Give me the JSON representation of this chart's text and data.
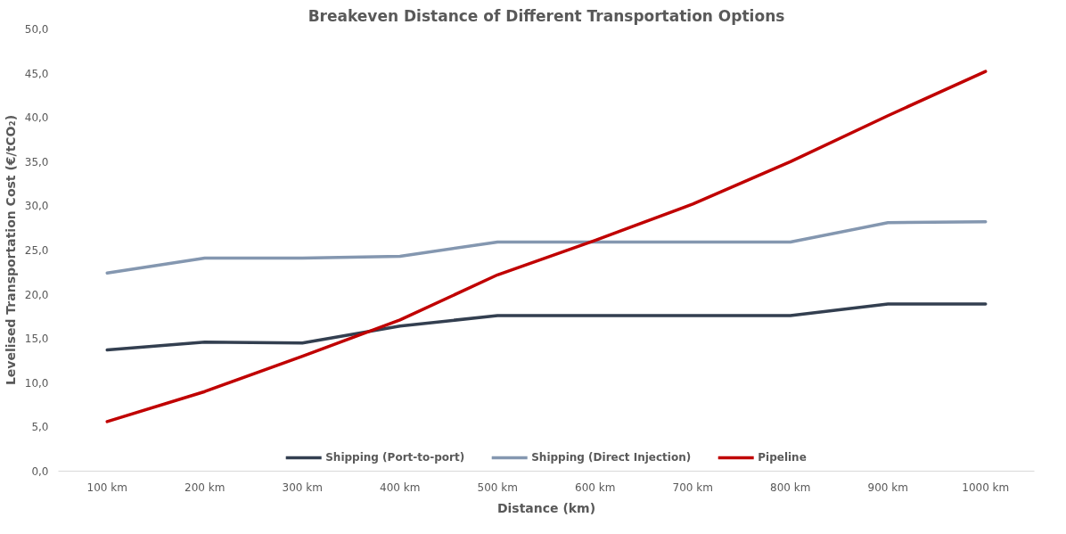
{
  "chart_data": {
    "type": "line",
    "title": "Breakeven Distance of Different Transportation Options",
    "xlabel": "Distance (km)",
    "ylabel": "Levelised Transportation Cost (€/tCO₂)",
    "categories": [
      "100 km",
      "200 km",
      "300 km",
      "400 km",
      "500 km",
      "600 km",
      "700 km",
      "800 km",
      "900 km",
      "1000 km"
    ],
    "series": [
      {
        "name": "Shipping (Port-to-port)",
        "color": "#333f50",
        "values": [
          13.7,
          14.6,
          14.5,
          16.4,
          17.6,
          17.6,
          17.6,
          17.6,
          18.9,
          18.9
        ]
      },
      {
        "name": "Shipping (Direct Injection)",
        "color": "#8497b0",
        "values": [
          22.4,
          24.1,
          24.1,
          24.3,
          25.9,
          25.9,
          25.9,
          25.9,
          28.1,
          28.2
        ]
      },
      {
        "name": "Pipeline",
        "color": "#c00000",
        "values": [
          5.6,
          9.0,
          13.0,
          17.1,
          22.2,
          26.1,
          30.2,
          35.0,
          40.2,
          45.2
        ]
      }
    ],
    "ylim": [
      0,
      50
    ],
    "yticks": [
      {
        "value": 0,
        "label": "0,0"
      },
      {
        "value": 5,
        "label": "5,0"
      },
      {
        "value": 10,
        "label": "10,0"
      },
      {
        "value": 15,
        "label": "15,0"
      },
      {
        "value": 20,
        "label": "20,0"
      },
      {
        "value": 25,
        "label": "25,0"
      },
      {
        "value": 30,
        "label": "30,0"
      },
      {
        "value": 35,
        "label": "35,0"
      },
      {
        "value": 40,
        "label": "40,0"
      },
      {
        "value": 45,
        "label": "45,0"
      },
      {
        "value": 50,
        "label": "50,0"
      }
    ],
    "grid": false,
    "legend": "bottom",
    "marker": "none",
    "line_style": "solid"
  }
}
